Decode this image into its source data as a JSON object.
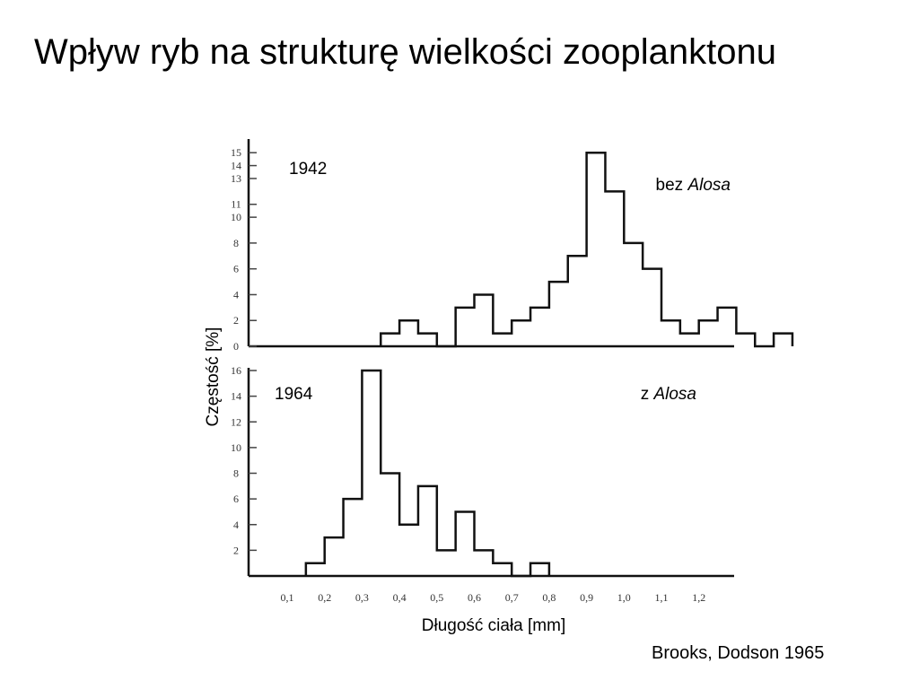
{
  "slide": {
    "title": "Wpływ ryb na strukturę wielkości zooplanktonu",
    "citation": "Brooks, Dodson 1965"
  },
  "chart_data": {
    "type": "bar",
    "xlabel": "Długość ciała [mm]",
    "ylabel": "Częstość [%]",
    "x_ticks": [
      "0,1",
      "0,2",
      "0,3",
      "0,4",
      "0,5",
      "0,6",
      "0,7",
      "0,8",
      "0,9",
      "1,0",
      "1,1",
      "1,2"
    ],
    "bin_width": 0.05,
    "panels": [
      {
        "year": "1942",
        "label_prefix": "bez ",
        "label_italic": "Alosa",
        "ylim": [
          0,
          15.5
        ],
        "y_ticks": [
          0,
          2,
          4,
          6,
          8,
          10,
          11,
          13,
          14,
          15
        ],
        "bins_start": [
          0.35,
          0.4,
          0.45,
          0.5,
          0.55,
          0.6,
          0.65,
          0.7,
          0.75,
          0.8,
          0.85,
          0.9,
          0.95,
          1.0,
          1.05,
          1.1,
          1.15,
          1.2,
          1.25,
          1.3,
          1.35,
          1.4
        ],
        "values": [
          1,
          2,
          1,
          0,
          3,
          4,
          1,
          2,
          3,
          5,
          7,
          15,
          12,
          8,
          6,
          2,
          1,
          2,
          3,
          1,
          0,
          1
        ]
      },
      {
        "year": "1964",
        "label_prefix": "z ",
        "label_italic": "Alosa",
        "ylim": [
          0,
          16
        ],
        "y_ticks": [
          2,
          4,
          6,
          8,
          10,
          12,
          14,
          16
        ],
        "bins_start": [
          0.15,
          0.2,
          0.25,
          0.3,
          0.35,
          0.4,
          0.45,
          0.5,
          0.55,
          0.6,
          0.65,
          0.7,
          0.75
        ],
        "values": [
          1,
          3,
          6,
          16,
          8,
          4,
          7,
          2,
          5,
          2,
          1,
          0,
          1
        ]
      }
    ]
  }
}
